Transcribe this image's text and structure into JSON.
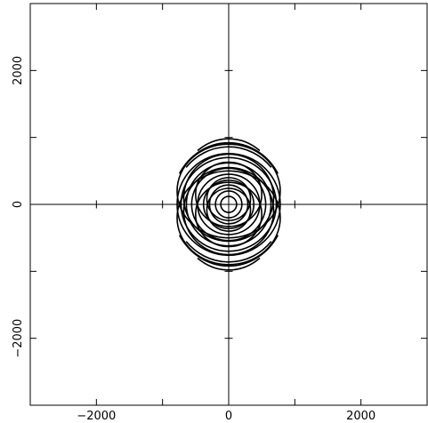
{
  "chart_data": {
    "type": "line",
    "title": "",
    "xlabel": "",
    "ylabel": "",
    "xlim": [
      -3000,
      3000
    ],
    "ylim": [
      -3000,
      3000
    ],
    "x_ticks": [
      -2000,
      0,
      2000
    ],
    "x_tick_labels": [
      "−2000",
      "0",
      "2000"
    ],
    "y_ticks": [
      -2000,
      0,
      2000
    ],
    "y_tick_labels": [
      "−2000",
      "0",
      "2000"
    ],
    "minor_step": 1000,
    "grid": false,
    "axis_lines_through_origin": true,
    "line_color": "#000000",
    "series": [
      {
        "type": "ellipse",
        "cx": 0,
        "cy": 0,
        "rx": 120,
        "ry": 120
      },
      {
        "type": "ellipse",
        "cx": 0,
        "cy": 0,
        "rx": 200,
        "ry": 200
      },
      {
        "type": "ellipse",
        "cx": 0,
        "cy": 0,
        "rx": 290,
        "ry": 290
      },
      {
        "type": "ellipse",
        "cx": 0,
        "cy": 0,
        "rx": 380,
        "ry": 360
      },
      {
        "type": "ellipse",
        "cx": 0,
        "cy": 0,
        "rx": 470,
        "ry": 450
      },
      {
        "type": "ellipse",
        "cx": 0,
        "cy": 0,
        "rx": 560,
        "ry": 540
      },
      {
        "type": "ellipse",
        "cx": 0,
        "cy": 0,
        "rx": 640,
        "ry": 620
      },
      {
        "type": "ellipse",
        "cx": 0,
        "cy": 0,
        "rx": 720,
        "ry": 700
      },
      {
        "type": "ellipse",
        "cx": 0,
        "cy": 0,
        "rx": 780,
        "ry": 760
      },
      {
        "type": "ellipse",
        "cx": 0,
        "cy": 200,
        "rx": 780,
        "ry": 700
      },
      {
        "type": "ellipse",
        "cx": 0,
        "cy": -200,
        "rx": 780,
        "ry": 700
      },
      {
        "type": "ellipse",
        "cx": 0,
        "cy": 100,
        "rx": 680,
        "ry": 650
      },
      {
        "type": "ellipse",
        "cx": 0,
        "cy": -100,
        "rx": 680,
        "ry": 650
      },
      {
        "type": "ellipse",
        "cx": 0,
        "cy": 150,
        "rx": 500,
        "ry": 480
      },
      {
        "type": "ellipse",
        "cx": 0,
        "cy": -150,
        "rx": 500,
        "ry": 480
      },
      {
        "type": "ellipse",
        "cx": 0,
        "cy": 80,
        "rx": 330,
        "ry": 320
      },
      {
        "type": "ellipse",
        "cx": 0,
        "cy": -80,
        "rx": 330,
        "ry": 320
      },
      {
        "type": "arc",
        "cx": 0,
        "cy": 0,
        "rx": 860,
        "ry": 920,
        "start": 30,
        "end": 150
      },
      {
        "type": "arc",
        "cx": 0,
        "cy": 0,
        "rx": 860,
        "ry": 920,
        "start": 210,
        "end": 330
      },
      {
        "type": "arc",
        "cx": 0,
        "cy": 0,
        "rx": 840,
        "ry": 860,
        "start": 40,
        "end": 140
      },
      {
        "type": "arc",
        "cx": 0,
        "cy": 0,
        "rx": 840,
        "ry": 860,
        "start": 220,
        "end": 320
      },
      {
        "type": "arc",
        "cx": 0,
        "cy": 0,
        "rx": 820,
        "ry": 980,
        "start": 55,
        "end": 125
      },
      {
        "type": "arc",
        "cx": 0,
        "cy": 0,
        "rx": 820,
        "ry": 980,
        "start": 235,
        "end": 305
      }
    ]
  }
}
